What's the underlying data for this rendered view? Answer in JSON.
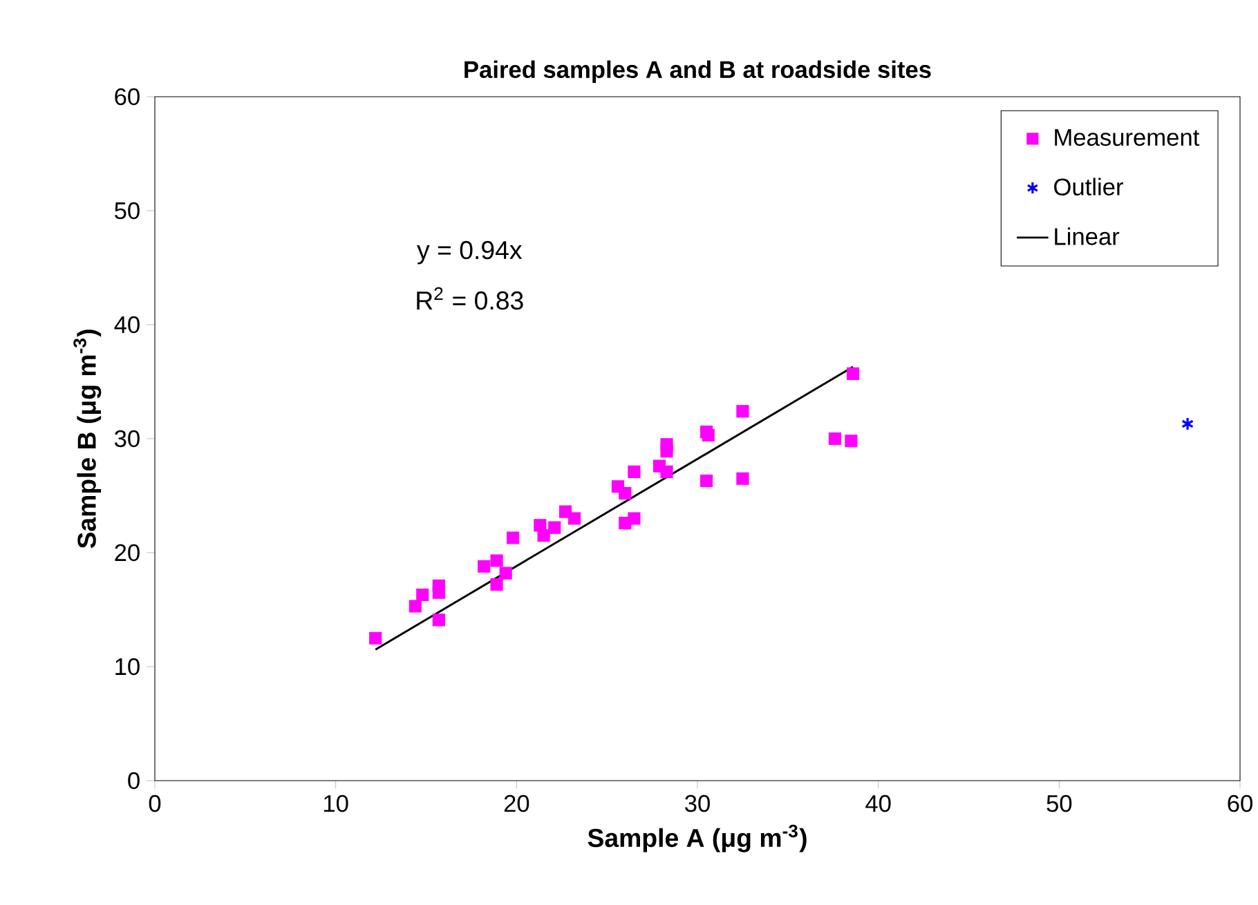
{
  "chart_data": {
    "type": "scatter",
    "title": "Paired samples A and B at roadside sites",
    "xlabel": "Sample A (μg m$^{-3}$)",
    "ylabel": "Sample B (μg m$^{-3}$)",
    "annotations": [
      "y = 0.94x",
      "R$^{2}$ = 0.83"
    ],
    "xlim": [
      0,
      60
    ],
    "ylim": [
      0,
      60
    ],
    "xticks": [
      0,
      10,
      20,
      30,
      40,
      50,
      60
    ],
    "yticks": [
      0,
      10,
      20,
      30,
      40,
      50,
      60
    ],
    "grid": false,
    "legend": "top right",
    "series": [
      {
        "name": "Measurement",
        "marker": "square",
        "color": "#ff00ff",
        "x": [
          12.2,
          14.4,
          14.8,
          15.7,
          15.7,
          15.7,
          18.2,
          18.9,
          18.9,
          19.4,
          19.8,
          21.3,
          21.5,
          22.1,
          22.7,
          23.2,
          25.6,
          26.0,
          26.0,
          26.5,
          26.5,
          27.9,
          28.3,
          28.3,
          28.3,
          30.5,
          30.6,
          30.5,
          32.5,
          32.5,
          37.6,
          38.5,
          38.6
        ],
        "values": [
          12.5,
          15.3,
          16.3,
          16.5,
          17.1,
          14.1,
          18.8,
          19.3,
          17.2,
          18.2,
          21.3,
          22.4,
          21.5,
          22.2,
          23.6,
          23.0,
          25.8,
          25.2,
          22.6,
          23.0,
          27.1,
          27.6,
          29.5,
          28.9,
          27.1,
          30.6,
          30.3,
          26.3,
          32.4,
          26.5,
          30.0,
          29.8,
          35.7
        ]
      },
      {
        "name": "Outlier",
        "marker": "cross",
        "color": "#0000ff",
        "x": [
          57.1
        ],
        "values": [
          31.3
        ]
      },
      {
        "name": "Linear",
        "type": "line",
        "marker": "none",
        "line_style": "solid",
        "color": "#000000",
        "x": [
          12.2,
          38.6
        ],
        "values": [
          11.5,
          36.3
        ]
      }
    ]
  }
}
